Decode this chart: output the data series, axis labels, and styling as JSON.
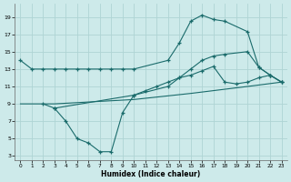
{
  "xlabel": "Humidex (Indice chaleur)",
  "bg_color": "#cdeaea",
  "grid_color": "#afd4d4",
  "line_color": "#1a6b6b",
  "xlim": [
    -0.5,
    23.5
  ],
  "ylim": [
    2.5,
    20.5
  ],
  "xticks": [
    0,
    1,
    2,
    3,
    4,
    5,
    6,
    7,
    8,
    9,
    10,
    11,
    12,
    13,
    14,
    15,
    16,
    17,
    18,
    19,
    20,
    21,
    22,
    23
  ],
  "yticks": [
    3,
    5,
    7,
    9,
    11,
    13,
    15,
    17,
    19
  ],
  "curve1_x": [
    0,
    1,
    2,
    3,
    4,
    5,
    6,
    7,
    8,
    9,
    10,
    13,
    14,
    15,
    16,
    17,
    18,
    20,
    21,
    22,
    23
  ],
  "curve1_y": [
    14,
    13,
    13,
    13,
    13,
    13,
    13,
    13,
    13,
    13,
    13,
    14,
    16,
    18.5,
    19.2,
    18.7,
    18.5,
    17.3,
    13.2,
    12.3,
    11.5
  ],
  "curve2_x": [
    3,
    10,
    13,
    14,
    15,
    16,
    17,
    18,
    20,
    21,
    22,
    23
  ],
  "curve2_y": [
    8.5,
    10,
    11,
    12,
    13,
    14,
    14.5,
    14.7,
    15,
    13.2,
    12.3,
    11.5
  ],
  "curve3_x": [
    2,
    3,
    4,
    5,
    6,
    7,
    8,
    9,
    10,
    11,
    12,
    13,
    14,
    15,
    16,
    17,
    18,
    19,
    20,
    21,
    22,
    23
  ],
  "curve3_y": [
    9,
    8.5,
    7,
    5,
    4.5,
    3.5,
    3.5,
    8,
    10,
    10.5,
    11,
    11.5,
    12,
    12.3,
    12.8,
    13.3,
    11.5,
    11.3,
    11.5,
    12,
    12.3,
    11.5
  ],
  "curve4_x": [
    0,
    3,
    10,
    15,
    20,
    23
  ],
  "curve4_y": [
    9,
    9,
    9.5,
    10.2,
    11,
    11.5
  ]
}
